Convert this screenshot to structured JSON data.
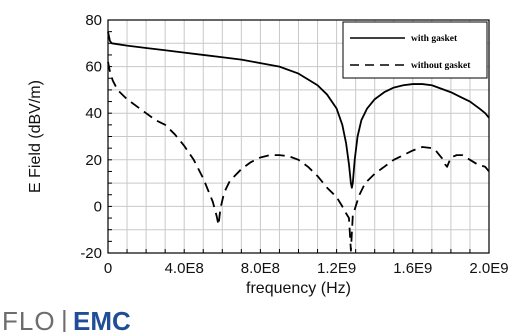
{
  "chart_data": {
    "type": "line",
    "title": "",
    "xlabel": "frequency (Hz)",
    "ylabel": "E Field (dBV/m)",
    "xlim": [
      0,
      2000000000
    ],
    "ylim": [
      -20,
      80
    ],
    "x_ticks": [
      0,
      400000000,
      800000000,
      1200000000,
      1600000000,
      2000000000
    ],
    "x_tick_labels": [
      "0",
      "4.0E8",
      "8.0E8",
      "1.2E9",
      "1.6E9",
      "2.0E9"
    ],
    "y_ticks": [
      -20,
      0,
      20,
      40,
      60,
      80
    ],
    "y_tick_labels": [
      "-20",
      "0",
      "20",
      "40",
      "60",
      "80"
    ],
    "grid": true,
    "legend_position": "top-right",
    "series": [
      {
        "name": "with gasket",
        "style": "solid",
        "color": "#000000",
        "x": [
          0,
          10000000,
          20000000,
          100000000,
          200000000,
          300000000,
          400000000,
          500000000,
          600000000,
          700000000,
          800000000,
          900000000,
          1000000000,
          1100000000,
          1150000000,
          1200000000,
          1230000000,
          1250000000,
          1265000000,
          1275000000,
          1280000000,
          1285000000,
          1295000000,
          1310000000,
          1330000000,
          1360000000,
          1400000000,
          1450000000,
          1500000000,
          1550000000,
          1600000000,
          1650000000,
          1700000000,
          1750000000,
          1800000000,
          1850000000,
          1900000000,
          1950000000,
          1980000000,
          2000000000
        ],
        "y": [
          75,
          71,
          70,
          69,
          68,
          67,
          66,
          65,
          64,
          63,
          61.5,
          60,
          57,
          52,
          48,
          42,
          35,
          27,
          18,
          10,
          8,
          10,
          20,
          30,
          37,
          42,
          46,
          49,
          51,
          52,
          52.5,
          52.5,
          52,
          50.5,
          49,
          47,
          45,
          42,
          40,
          38
        ]
      },
      {
        "name": "without gasket",
        "style": "dashed",
        "color": "#000000",
        "x": [
          0,
          10000000,
          25000000,
          50000000,
          100000000,
          150000000,
          200000000,
          250000000,
          300000000,
          350000000,
          400000000,
          450000000,
          500000000,
          530000000,
          550000000,
          570000000,
          580000000,
          590000000,
          610000000,
          640000000,
          700000000,
          750000000,
          800000000,
          850000000,
          900000000,
          950000000,
          1000000000,
          1050000000,
          1100000000,
          1150000000,
          1200000000,
          1230000000,
          1250000000,
          1265000000,
          1275000000,
          1285000000,
          1300000000,
          1320000000,
          1350000000,
          1400000000,
          1450000000,
          1500000000,
          1550000000,
          1600000000,
          1650000000,
          1700000000,
          1720000000,
          1740000000,
          1760000000,
          1770000000,
          1780000000,
          1800000000,
          1830000000,
          1860000000,
          1900000000,
          1940000000,
          1980000000,
          2000000000
        ],
        "y": [
          62,
          58,
          54,
          50,
          46,
          43,
          40,
          37,
          35,
          31,
          26,
          20,
          12,
          6,
          2,
          -4,
          -8,
          -1,
          6,
          11,
          16,
          19,
          21,
          22,
          22,
          21.5,
          20,
          17,
          13,
          8,
          4,
          0,
          -3,
          -5,
          -19,
          -4,
          0,
          5,
          10,
          14,
          17,
          20,
          22,
          24,
          25.5,
          25,
          24,
          22,
          20,
          18,
          17,
          21,
          22,
          22,
          20,
          18,
          17,
          15
        ]
      }
    ]
  },
  "branding": {
    "logo_left": "FLO",
    "logo_separator": "|",
    "logo_right": "EMC"
  }
}
